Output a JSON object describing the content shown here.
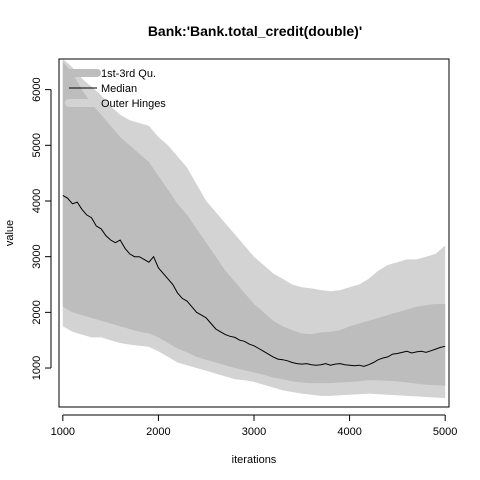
{
  "chart_data": {
    "type": "area",
    "title": "Bank:'Bank.total_credit(double)'",
    "xlabel": "iterations",
    "ylabel": "value",
    "xlim": [
      960,
      5040
    ],
    "ylim": [
      300,
      6550
    ],
    "x_ticks": [
      1000,
      2000,
      3000,
      4000,
      5000
    ],
    "y_ticks": [
      1000,
      2000,
      3000,
      4000,
      5000,
      6000
    ],
    "legend": {
      "placement": "top-left",
      "entries": [
        {
          "label": "1st-3rd Qu.",
          "kind": "band",
          "color": "#bdbdbd"
        },
        {
          "label": "Median",
          "kind": "line",
          "color": "#000000"
        },
        {
          "label": "Outer Hinges",
          "kind": "band",
          "color": "#d3d3d3"
        }
      ]
    },
    "colors": {
      "outer_band": "#d3d3d3",
      "quartile_band": "#bdbdbd",
      "median_line": "#000000"
    },
    "series": [
      {
        "name": "Outer Hinges",
        "x": [
          1000,
          1100,
          1200,
          1300,
          1400,
          1500,
          1600,
          1700,
          1800,
          1900,
          2000,
          2100,
          2200,
          2300,
          2400,
          2500,
          2600,
          2700,
          2800,
          2900,
          3000,
          3100,
          3200,
          3300,
          3400,
          3500,
          3600,
          3700,
          3800,
          3900,
          4000,
          4100,
          4200,
          4300,
          4400,
          4500,
          4600,
          4700,
          4800,
          4900,
          5000
        ],
        "lower": [
          1750,
          1650,
          1600,
          1550,
          1550,
          1500,
          1450,
          1420,
          1400,
          1380,
          1300,
          1200,
          1100,
          1050,
          1000,
          950,
          900,
          850,
          800,
          780,
          750,
          700,
          650,
          600,
          570,
          540,
          520,
          500,
          500,
          510,
          520,
          530,
          540,
          530,
          520,
          510,
          500,
          490,
          480,
          470,
          460
        ],
        "upper": [
          6550,
          6400,
          6200,
          6050,
          5900,
          5700,
          5550,
          5450,
          5400,
          5350,
          5150,
          5000,
          4800,
          4600,
          4300,
          4000,
          3800,
          3600,
          3400,
          3200,
          3000,
          2850,
          2700,
          2600,
          2500,
          2450,
          2430,
          2400,
          2380,
          2400,
          2450,
          2500,
          2600,
          2750,
          2850,
          2900,
          2950,
          2950,
          3000,
          3050,
          3200
        ]
      },
      {
        "name": "1st-3rd Qu.",
        "x": [
          1000,
          1100,
          1200,
          1300,
          1400,
          1500,
          1600,
          1700,
          1800,
          1900,
          2000,
          2100,
          2200,
          2300,
          2400,
          2500,
          2600,
          2700,
          2800,
          2900,
          3000,
          3100,
          3200,
          3300,
          3400,
          3500,
          3600,
          3700,
          3800,
          3900,
          4000,
          4100,
          4200,
          4300,
          4400,
          4500,
          4600,
          4700,
          4800,
          4900,
          5000
        ],
        "lower": [
          2100,
          2000,
          1950,
          1900,
          1850,
          1800,
          1750,
          1700,
          1650,
          1620,
          1550,
          1450,
          1350,
          1280,
          1200,
          1150,
          1100,
          1050,
          1000,
          960,
          920,
          880,
          830,
          800,
          760,
          740,
          730,
          730,
          730,
          740,
          750,
          760,
          780,
          780,
          770,
          760,
          740,
          720,
          700,
          690,
          680
        ],
        "upper": [
          6500,
          6300,
          6000,
          5750,
          5550,
          5350,
          5150,
          5000,
          4850,
          4700,
          4450,
          4200,
          3950,
          3750,
          3500,
          3250,
          3000,
          2750,
          2550,
          2350,
          2150,
          2000,
          1850,
          1750,
          1680,
          1620,
          1610,
          1640,
          1650,
          1680,
          1750,
          1800,
          1850,
          1900,
          1950,
          2000,
          2050,
          2100,
          2130,
          2150,
          2150
        ]
      },
      {
        "name": "Median",
        "x": [
          1000,
          1050,
          1100,
          1150,
          1200,
          1250,
          1300,
          1350,
          1400,
          1450,
          1500,
          1550,
          1600,
          1650,
          1700,
          1750,
          1800,
          1850,
          1900,
          1950,
          2000,
          2050,
          2100,
          2150,
          2200,
          2250,
          2300,
          2350,
          2400,
          2450,
          2500,
          2550,
          2600,
          2650,
          2700,
          2750,
          2800,
          2850,
          2900,
          2950,
          3000,
          3050,
          3100,
          3150,
          3200,
          3250,
          3300,
          3350,
          3400,
          3450,
          3500,
          3550,
          3600,
          3650,
          3700,
          3750,
          3800,
          3850,
          3900,
          3950,
          4000,
          4050,
          4100,
          4150,
          4200,
          4250,
          4300,
          4350,
          4400,
          4450,
          4500,
          4550,
          4600,
          4650,
          4700,
          4750,
          4800,
          4850,
          4900,
          4950,
          5000
        ],
        "values": [
          4100,
          4050,
          3950,
          3980,
          3850,
          3750,
          3700,
          3550,
          3500,
          3380,
          3300,
          3250,
          3300,
          3150,
          3050,
          3000,
          3000,
          2950,
          2900,
          3000,
          2800,
          2700,
          2600,
          2500,
          2350,
          2250,
          2200,
          2100,
          2000,
          1950,
          1900,
          1800,
          1700,
          1650,
          1600,
          1570,
          1550,
          1500,
          1480,
          1430,
          1400,
          1350,
          1300,
          1250,
          1200,
          1160,
          1150,
          1130,
          1100,
          1080,
          1070,
          1080,
          1060,
          1050,
          1060,
          1080,
          1050,
          1070,
          1080,
          1060,
          1050,
          1040,
          1050,
          1030,
          1060,
          1100,
          1150,
          1180,
          1200,
          1250,
          1260,
          1280,
          1300,
          1270,
          1290,
          1300,
          1280,
          1310,
          1340,
          1370,
          1390
        ]
      }
    ]
  }
}
